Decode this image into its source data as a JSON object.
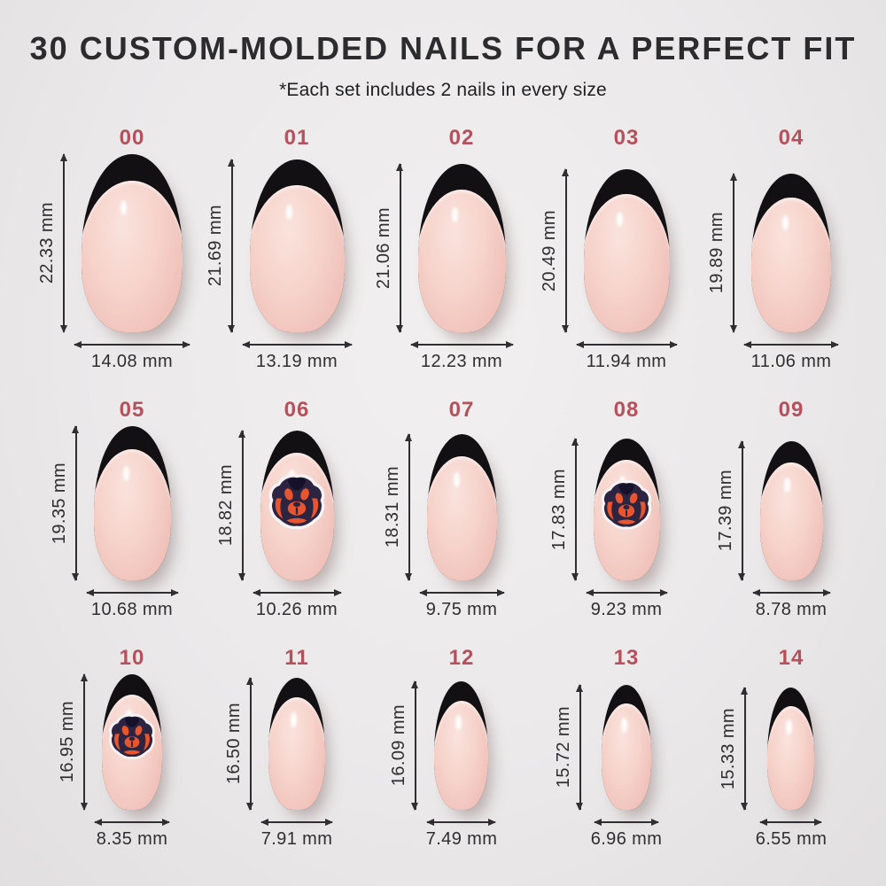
{
  "header": {
    "title": "30 CUSTOM-MOLDED NAILS FOR A PERFECT FIT",
    "subtitle": "*Each set includes 2 nails in every size"
  },
  "colors": {
    "accent_red": "#b5515c",
    "ink": "#2c2c2e",
    "arrow": "#2f2e30",
    "nail_tip_black": "#131014",
    "nail_pink": "#f5cfc8",
    "background": "#ebe9ea",
    "decal_navy": "#2c2440",
    "decal_orange": "#e8552e",
    "decal_outline": "#f6f3f5"
  },
  "units": "mm",
  "nails": [
    {
      "size": "00",
      "height_mm": 22.33,
      "width_mm": 14.08,
      "height_label": "22.33 mm",
      "width_label": "14.08 mm",
      "decal": false
    },
    {
      "size": "01",
      "height_mm": 21.69,
      "width_mm": 13.19,
      "height_label": "21.69 mm",
      "width_label": "13.19 mm",
      "decal": false
    },
    {
      "size": "02",
      "height_mm": 21.06,
      "width_mm": 12.23,
      "height_label": "21.06 mm",
      "width_label": "12.23 mm",
      "decal": false
    },
    {
      "size": "03",
      "height_mm": 20.49,
      "width_mm": 11.94,
      "height_label": "20.49 mm",
      "width_label": "11.94 mm",
      "decal": false
    },
    {
      "size": "04",
      "height_mm": 19.89,
      "width_mm": 11.06,
      "height_label": "19.89 mm",
      "width_label": "11.06 mm",
      "decal": false
    },
    {
      "size": "05",
      "height_mm": 19.35,
      "width_mm": 10.68,
      "height_label": "19.35 mm",
      "width_label": "10.68 mm",
      "decal": false
    },
    {
      "size": "06",
      "height_mm": 18.82,
      "width_mm": 10.26,
      "height_label": "18.82 mm",
      "width_label": "10.26 mm",
      "decal": true
    },
    {
      "size": "07",
      "height_mm": 18.31,
      "width_mm": 9.75,
      "height_label": "18.31 mm",
      "width_label": "9.75 mm",
      "decal": false
    },
    {
      "size": "08",
      "height_mm": 17.83,
      "width_mm": 9.23,
      "height_label": "17.83 mm",
      "width_label": "9.23 mm",
      "decal": true
    },
    {
      "size": "09",
      "height_mm": 17.39,
      "width_mm": 8.78,
      "height_label": "17.39 mm",
      "width_label": "8.78 mm",
      "decal": false
    },
    {
      "size": "10",
      "height_mm": 16.95,
      "width_mm": 8.35,
      "height_label": "16.95 mm",
      "width_label": "8.35 mm",
      "decal": true
    },
    {
      "size": "11",
      "height_mm": 16.5,
      "width_mm": 7.91,
      "height_label": "16.50 mm",
      "width_label": "7.91 mm",
      "decal": false
    },
    {
      "size": "12",
      "height_mm": 16.09,
      "width_mm": 7.49,
      "height_label": "16.09 mm",
      "width_label": "7.49 mm",
      "decal": false
    },
    {
      "size": "13",
      "height_mm": 15.72,
      "width_mm": 6.96,
      "height_label": "15.72 mm",
      "width_label": "6.96 mm",
      "decal": false
    },
    {
      "size": "14",
      "height_mm": 15.33,
      "width_mm": 6.55,
      "height_label": "15.33 mm",
      "width_label": "6.55 mm",
      "decal": false
    }
  ]
}
